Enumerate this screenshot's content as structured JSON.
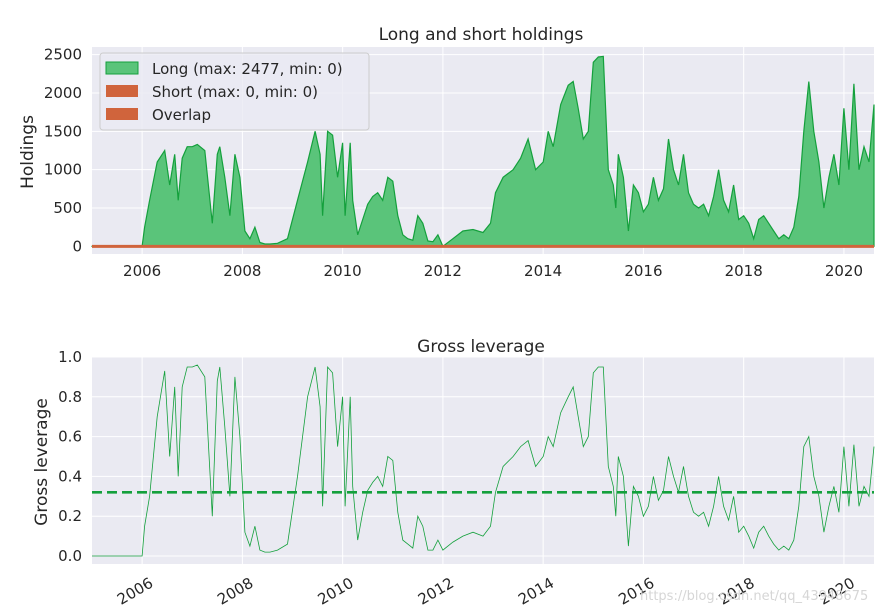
{
  "chart_data": [
    {
      "type": "area",
      "title": "Long and short holdings",
      "xlabel": "",
      "ylabel": "Holdings",
      "xlim": [
        2005.0,
        2020.6
      ],
      "ylim": [
        -100,
        2600
      ],
      "xticks": [
        2006,
        2008,
        2010,
        2012,
        2014,
        2016,
        2018,
        2020
      ],
      "xtick_labels": [
        "2006",
        "2008",
        "2010",
        "2012",
        "2014",
        "2016",
        "2018",
        "2020"
      ],
      "yticks": [
        0,
        500,
        1000,
        1500,
        2000,
        2500
      ],
      "ytick_labels": [
        "0",
        "500",
        "1000",
        "1500",
        "2000",
        "2500"
      ],
      "grid": true,
      "legend_position": "top-left",
      "legend": [
        "Long (max: 2477, min: 0)",
        "Short (max: 0, min: 0)",
        "Overlap"
      ],
      "colors": {
        "long_fill": "#5ac47a",
        "long_line": "#14a03c",
        "short": "#d0643c",
        "overlap": "#d0643c",
        "background": "#eaeaf2",
        "grid": "#ffffff"
      },
      "series": [
        {
          "name": "Long (max: 2477, min: 0)",
          "x": [
            2005.0,
            2006.0,
            2006.05,
            2006.15,
            2006.3,
            2006.45,
            2006.55,
            2006.65,
            2006.72,
            2006.8,
            2006.9,
            2007.0,
            2007.1,
            2007.25,
            2007.4,
            2007.5,
            2007.55,
            2007.65,
            2007.75,
            2007.85,
            2007.95,
            2008.05,
            2008.15,
            2008.25,
            2008.35,
            2008.45,
            2008.55,
            2008.7,
            2008.9,
            2009.1,
            2009.3,
            2009.45,
            2009.55,
            2009.6,
            2009.7,
            2009.8,
            2009.9,
            2010.0,
            2010.05,
            2010.15,
            2010.2,
            2010.3,
            2010.4,
            2010.5,
            2010.6,
            2010.7,
            2010.8,
            2010.9,
            2011.0,
            2011.1,
            2011.2,
            2011.3,
            2011.4,
            2011.5,
            2011.6,
            2011.7,
            2011.8,
            2011.9,
            2012.0,
            2012.2,
            2012.4,
            2012.6,
            2012.8,
            2012.95,
            2013.05,
            2013.2,
            2013.4,
            2013.55,
            2013.7,
            2013.85,
            2014.0,
            2014.1,
            2014.2,
            2014.35,
            2014.5,
            2014.6,
            2014.7,
            2014.8,
            2014.9,
            2015.0,
            2015.1,
            2015.2,
            2015.3,
            2015.4,
            2015.45,
            2015.5,
            2015.6,
            2015.7,
            2015.8,
            2015.9,
            2016.0,
            2016.1,
            2016.2,
            2016.3,
            2016.4,
            2016.5,
            2016.6,
            2016.7,
            2016.8,
            2016.9,
            2017.0,
            2017.1,
            2017.2,
            2017.3,
            2017.4,
            2017.5,
            2017.6,
            2017.7,
            2017.8,
            2017.9,
            2018.0,
            2018.1,
            2018.2,
            2018.3,
            2018.4,
            2018.5,
            2018.6,
            2018.7,
            2018.8,
            2018.9,
            2019.0,
            2019.1,
            2019.2,
            2019.3,
            2019.4,
            2019.5,
            2019.6,
            2019.7,
            2019.8,
            2019.9,
            2020.0,
            2020.1,
            2020.2,
            2020.3,
            2020.4,
            2020.5,
            2020.6
          ],
          "y": [
            0,
            0,
            250,
            600,
            1100,
            1250,
            800,
            1200,
            600,
            1150,
            1300,
            1300,
            1330,
            1250,
            300,
            1200,
            1300,
            900,
            400,
            1200,
            900,
            200,
            100,
            250,
            50,
            30,
            30,
            40,
            100,
            600,
            1100,
            1500,
            1200,
            400,
            1500,
            1450,
            900,
            1350,
            400,
            1350,
            600,
            150,
            350,
            550,
            650,
            700,
            600,
            900,
            850,
            400,
            150,
            100,
            80,
            400,
            300,
            70,
            60,
            150,
            0,
            100,
            200,
            220,
            180,
            300,
            700,
            900,
            1000,
            1150,
            1400,
            1000,
            1100,
            1500,
            1300,
            1850,
            2100,
            2150,
            1800,
            1400,
            1500,
            2400,
            2470,
            2477,
            1000,
            800,
            500,
            1200,
            900,
            200,
            800,
            700,
            450,
            550,
            900,
            600,
            750,
            1400,
            1000,
            800,
            1200,
            700,
            550,
            500,
            550,
            400,
            650,
            1000,
            600,
            450,
            800,
            350,
            400,
            300,
            100,
            350,
            400,
            300,
            200,
            100,
            150,
            100,
            250,
            650,
            1500,
            2150,
            1500,
            1100,
            500,
            900,
            1200,
            800,
            1800,
            1000,
            2120,
            1000,
            1300,
            1100,
            1850
          ]
        },
        {
          "name": "Short (max: 0, min: 0)",
          "x": [
            2005.0,
            2020.6
          ],
          "y": [
            0,
            0
          ]
        }
      ]
    },
    {
      "type": "line",
      "title": "Gross leverage",
      "xlabel": "",
      "ylabel": "Gross leverage",
      "xlim": [
        2005.0,
        2020.6
      ],
      "ylim": [
        -0.04,
        1.0
      ],
      "xticks": [
        2006,
        2008,
        2010,
        2012,
        2014,
        2016,
        2018,
        2020
      ],
      "xtick_labels": [
        "2006",
        "2008",
        "2010",
        "2012",
        "2014",
        "2016",
        "2018",
        "2020"
      ],
      "yticks": [
        0.0,
        0.2,
        0.4,
        0.6,
        0.8,
        1.0
      ],
      "ytick_labels": [
        "0.0",
        "0.2",
        "0.4",
        "0.6",
        "0.8",
        "1.0"
      ],
      "grid": true,
      "mean_line": 0.32,
      "colors": {
        "line": "#14a03c",
        "mean": "#14a03c",
        "background": "#eaeaf2",
        "grid": "#ffffff"
      },
      "series": [
        {
          "name": "",
          "x": [
            2005.0,
            2006.0,
            2006.05,
            2006.15,
            2006.3,
            2006.45,
            2006.55,
            2006.65,
            2006.72,
            2006.8,
            2006.9,
            2007.0,
            2007.1,
            2007.25,
            2007.4,
            2007.5,
            2007.55,
            2007.65,
            2007.75,
            2007.85,
            2007.95,
            2008.05,
            2008.15,
            2008.25,
            2008.35,
            2008.45,
            2008.55,
            2008.7,
            2008.9,
            2009.1,
            2009.3,
            2009.45,
            2009.55,
            2009.6,
            2009.7,
            2009.8,
            2009.9,
            2010.0,
            2010.05,
            2010.15,
            2010.2,
            2010.3,
            2010.4,
            2010.5,
            2010.6,
            2010.7,
            2010.8,
            2010.9,
            2011.0,
            2011.1,
            2011.2,
            2011.3,
            2011.4,
            2011.5,
            2011.6,
            2011.7,
            2011.8,
            2011.9,
            2012.0,
            2012.2,
            2012.4,
            2012.6,
            2012.8,
            2012.95,
            2013.05,
            2013.2,
            2013.4,
            2013.55,
            2013.7,
            2013.85,
            2014.0,
            2014.1,
            2014.2,
            2014.35,
            2014.5,
            2014.6,
            2014.7,
            2014.8,
            2014.9,
            2015.0,
            2015.1,
            2015.2,
            2015.3,
            2015.4,
            2015.45,
            2015.5,
            2015.6,
            2015.7,
            2015.8,
            2015.9,
            2016.0,
            2016.1,
            2016.2,
            2016.3,
            2016.4,
            2016.5,
            2016.6,
            2016.7,
            2016.8,
            2016.9,
            2017.0,
            2017.1,
            2017.2,
            2017.3,
            2017.4,
            2017.5,
            2017.6,
            2017.7,
            2017.8,
            2017.9,
            2018.0,
            2018.1,
            2018.2,
            2018.3,
            2018.4,
            2018.5,
            2018.6,
            2018.7,
            2018.8,
            2018.9,
            2019.0,
            2019.1,
            2019.2,
            2019.3,
            2019.4,
            2019.5,
            2019.6,
            2019.7,
            2019.8,
            2019.9,
            2020.0,
            2020.1,
            2020.2,
            2020.3,
            2020.4,
            2020.5,
            2020.6
          ],
          "y": [
            0.0,
            0.0,
            0.15,
            0.3,
            0.7,
            0.93,
            0.5,
            0.85,
            0.4,
            0.85,
            0.95,
            0.95,
            0.96,
            0.9,
            0.2,
            0.88,
            0.95,
            0.65,
            0.3,
            0.9,
            0.6,
            0.12,
            0.05,
            0.15,
            0.03,
            0.02,
            0.02,
            0.03,
            0.06,
            0.4,
            0.8,
            0.95,
            0.75,
            0.25,
            0.95,
            0.92,
            0.55,
            0.8,
            0.25,
            0.8,
            0.35,
            0.08,
            0.22,
            0.33,
            0.37,
            0.4,
            0.35,
            0.5,
            0.48,
            0.22,
            0.08,
            0.06,
            0.04,
            0.2,
            0.15,
            0.03,
            0.03,
            0.08,
            0.03,
            0.07,
            0.1,
            0.12,
            0.1,
            0.15,
            0.32,
            0.45,
            0.5,
            0.55,
            0.58,
            0.45,
            0.5,
            0.6,
            0.55,
            0.72,
            0.8,
            0.85,
            0.7,
            0.55,
            0.6,
            0.92,
            0.95,
            0.95,
            0.45,
            0.35,
            0.2,
            0.5,
            0.4,
            0.05,
            0.35,
            0.3,
            0.2,
            0.25,
            0.4,
            0.28,
            0.33,
            0.5,
            0.4,
            0.32,
            0.45,
            0.3,
            0.22,
            0.2,
            0.22,
            0.15,
            0.25,
            0.4,
            0.25,
            0.18,
            0.3,
            0.12,
            0.15,
            0.1,
            0.04,
            0.12,
            0.15,
            0.1,
            0.06,
            0.03,
            0.05,
            0.03,
            0.08,
            0.25,
            0.55,
            0.6,
            0.4,
            0.3,
            0.12,
            0.25,
            0.35,
            0.22,
            0.55,
            0.25,
            0.56,
            0.25,
            0.35,
            0.3,
            0.55
          ]
        }
      ]
    }
  ],
  "watermark": "https://blog.csdn.net/qq_43948675"
}
